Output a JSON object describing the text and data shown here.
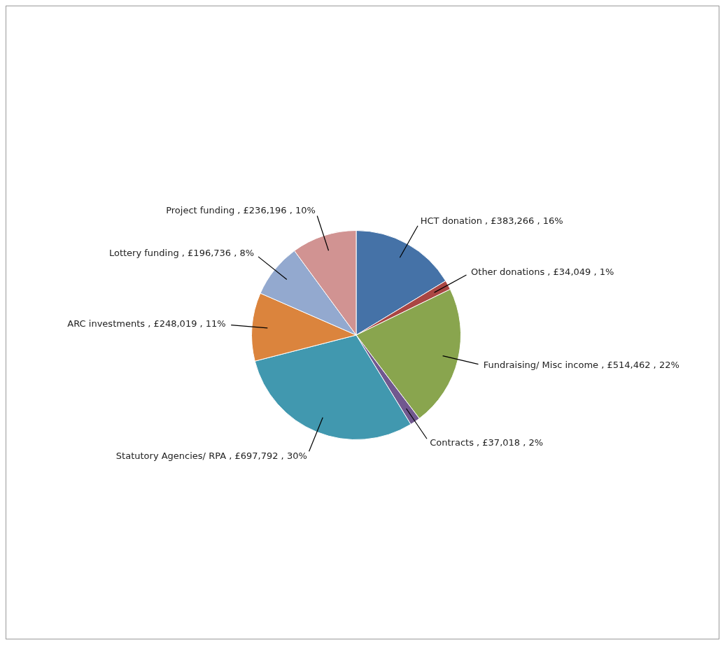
{
  "chart_data": {
    "type": "pie",
    "categories": [
      "HCT donation",
      "Other donations",
      "Fundraising/ Misc income",
      "Contracts",
      "Statutory Agencies/ RPA",
      "ARC investments",
      "Lottery funding",
      "Project funding"
    ],
    "values": [
      383266,
      34049,
      514462,
      37018,
      697792,
      248019,
      196736,
      236196
    ],
    "colors": [
      "#4572a7",
      "#aa4643",
      "#89a54e",
      "#71588f",
      "#4198af",
      "#db843d",
      "#93a9cf",
      "#d19392"
    ],
    "value_labels": [
      "£383,266 , 16%",
      "£34,049 , 1%",
      "£514,462 , 22%",
      "£37,018 , 2%",
      "£697,792 , 30%",
      "£248,019 , 11%",
      "£196,736 , 8%",
      "£236,196 , 10%"
    ],
    "legend": false
  }
}
